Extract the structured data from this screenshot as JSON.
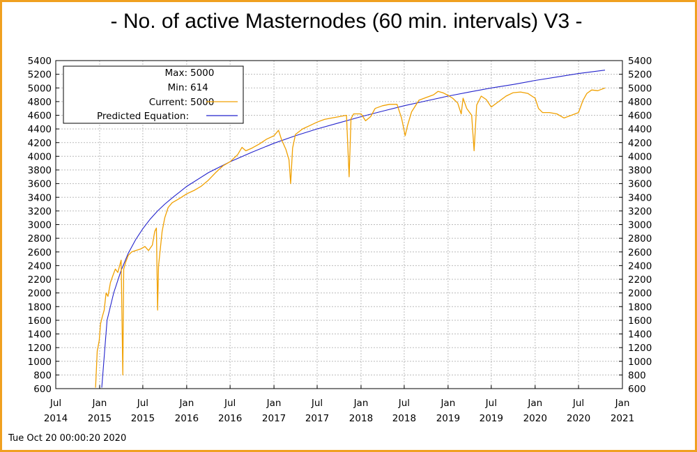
{
  "title": "- No. of active Masternodes (60 min. intervals) V3 -",
  "footer": "Tue Oct 20 00:00:20 2020",
  "colors": {
    "frame": "#f0a020",
    "current": "#f0a000",
    "predicted": "#2222cc",
    "gap": "#000000",
    "grid": "#bbbbbb"
  },
  "chart_data": {
    "type": "line",
    "xlim": [
      "2014-07-01",
      "2021-01-01"
    ],
    "ylim": [
      600,
      5400
    ],
    "yticks": [
      600,
      800,
      1000,
      1200,
      1400,
      1600,
      1800,
      2000,
      2200,
      2400,
      2600,
      2800,
      3000,
      3200,
      3400,
      3600,
      3800,
      4000,
      4200,
      4400,
      4600,
      4800,
      5000,
      5200,
      5400
    ],
    "xticks": [
      {
        "date": "2014-07-01",
        "month": "Jul",
        "year": "2014"
      },
      {
        "date": "2015-01-01",
        "month": "Jan",
        "year": "2015"
      },
      {
        "date": "2015-07-01",
        "month": "Jul",
        "year": "2015"
      },
      {
        "date": "2016-01-01",
        "month": "Jan",
        "year": "2016"
      },
      {
        "date": "2016-07-01",
        "month": "Jul",
        "year": "2016"
      },
      {
        "date": "2017-01-01",
        "month": "Jan",
        "year": "2017"
      },
      {
        "date": "2017-07-01",
        "month": "Jul",
        "year": "2017"
      },
      {
        "date": "2018-01-01",
        "month": "Jan",
        "year": "2018"
      },
      {
        "date": "2018-07-01",
        "month": "Jul",
        "year": "2018"
      },
      {
        "date": "2019-01-01",
        "month": "Jan",
        "year": "2019"
      },
      {
        "date": "2019-07-01",
        "month": "Jul",
        "year": "2019"
      },
      {
        "date": "2020-01-01",
        "month": "Jan",
        "year": "2020"
      },
      {
        "date": "2020-07-01",
        "month": "Jul",
        "year": "2020"
      },
      {
        "date": "2021-01-01",
        "month": "Jan",
        "year": "2021"
      }
    ],
    "grid": true,
    "legend_position": "top-left",
    "legend": {
      "max_label": "Max:",
      "max_value": "5000",
      "min_label": "Min:",
      "min_value": "614",
      "current_label": "Current:",
      "current_value": "5000",
      "predicted_label": "Predicted Equation:"
    },
    "series": [
      {
        "name": "Current",
        "points": [
          [
            "2014-12-15",
            614
          ],
          [
            "2014-12-22",
            1150
          ],
          [
            "2014-12-30",
            1300
          ],
          [
            "2015-01-05",
            1550
          ],
          [
            "2015-01-12",
            1650
          ],
          [
            "2015-01-20",
            1750
          ],
          [
            "2015-01-28",
            2000
          ],
          [
            "2015-02-05",
            1950
          ],
          [
            "2015-02-15",
            2150
          ],
          [
            "2015-02-25",
            2250
          ],
          [
            "2015-03-08",
            2350
          ],
          [
            "2015-03-18",
            2300
          ],
          [
            "2015-04-01",
            2480
          ],
          [
            "2015-04-08",
            800
          ],
          [
            "2015-04-12",
            2350
          ],
          [
            "2015-04-20",
            2450
          ],
          [
            "2015-05-01",
            2550
          ],
          [
            "2015-05-15",
            2600
          ],
          [
            "2015-06-01",
            2620
          ],
          [
            "2015-06-20",
            2640
          ],
          [
            "2015-07-10",
            2680
          ],
          [
            "2015-07-25",
            2620
          ],
          [
            "2015-08-10",
            2700
          ],
          [
            "2015-08-20",
            2900
          ],
          [
            "2015-08-27",
            2950
          ],
          [
            "2015-09-01",
            1750
          ],
          [
            "2015-09-05",
            2400
          ],
          [
            "2015-09-20",
            2900
          ],
          [
            "2015-10-01",
            3100
          ],
          [
            "2015-10-15",
            3250
          ],
          [
            "2015-11-01",
            3320
          ],
          [
            "2015-12-01",
            3380
          ],
          [
            "2016-01-01",
            3450
          ],
          [
            "2016-02-01",
            3500
          ],
          [
            "2016-03-01",
            3560
          ],
          [
            "2016-04-01",
            3650
          ],
          [
            "2016-05-01",
            3760
          ],
          [
            "2016-06-01",
            3860
          ],
          [
            "2016-07-01",
            3920
          ],
          [
            "2016-08-01",
            4020
          ],
          [
            "2016-08-20",
            4130
          ],
          [
            "2016-09-05",
            4080
          ],
          [
            "2016-10-01",
            4120
          ],
          [
            "2016-11-01",
            4180
          ],
          [
            "2016-12-01",
            4250
          ],
          [
            "2017-01-01",
            4300
          ],
          [
            "2017-01-20",
            4380
          ],
          [
            "2017-02-01",
            4250
          ],
          [
            "2017-02-20",
            4100
          ],
          [
            "2017-03-05",
            3950
          ],
          [
            "2017-03-12",
            3600
          ],
          [
            "2017-03-20",
            4120
          ],
          [
            "2017-04-01",
            4320
          ],
          [
            "2017-05-01",
            4400
          ],
          [
            "2017-06-01",
            4450
          ],
          [
            "2017-07-01",
            4500
          ],
          [
            "2017-08-01",
            4540
          ],
          [
            "2017-09-01",
            4560
          ],
          [
            "2017-10-01",
            4580
          ],
          [
            "2017-11-01",
            4600
          ],
          [
            "2017-11-12",
            3700
          ],
          [
            "2017-11-20",
            4550
          ],
          [
            "2017-12-01",
            4620
          ],
          [
            "2018-01-01",
            4620
          ],
          [
            "2018-01-20",
            4520
          ],
          [
            "2018-02-10",
            4580
          ],
          [
            "2018-03-01",
            4700
          ],
          [
            "2018-04-01",
            4740
          ],
          [
            "2018-05-01",
            4760
          ],
          [
            "2018-06-01",
            4760
          ],
          [
            "2018-06-20",
            4560
          ],
          [
            "2018-07-05",
            4300
          ],
          [
            "2018-07-15",
            4450
          ],
          [
            "2018-08-01",
            4650
          ],
          [
            "2018-09-01",
            4820
          ],
          [
            "2018-10-01",
            4860
          ],
          [
            "2018-11-01",
            4900
          ],
          [
            "2018-11-20",
            4950
          ],
          [
            "2018-12-10",
            4930
          ],
          [
            "2019-01-01",
            4890
          ],
          [
            "2019-01-20",
            4850
          ],
          [
            "2019-02-10",
            4780
          ],
          [
            "2019-02-25",
            4620
          ],
          [
            "2019-03-05",
            4850
          ],
          [
            "2019-03-20",
            4700
          ],
          [
            "2019-04-10",
            4600
          ],
          [
            "2019-04-20",
            4080
          ],
          [
            "2019-05-01",
            4750
          ],
          [
            "2019-05-20",
            4880
          ],
          [
            "2019-06-10",
            4830
          ],
          [
            "2019-07-01",
            4720
          ],
          [
            "2019-08-01",
            4800
          ],
          [
            "2019-09-01",
            4880
          ],
          [
            "2019-10-01",
            4930
          ],
          [
            "2019-11-01",
            4940
          ],
          [
            "2019-12-01",
            4920
          ],
          [
            "2020-01-01",
            4850
          ],
          [
            "2020-01-15",
            4700
          ],
          [
            "2020-02-01",
            4640
          ],
          [
            "2020-03-01",
            4640
          ],
          [
            "2020-04-01",
            4620
          ],
          [
            "2020-05-01",
            4560
          ],
          [
            "2020-06-01",
            4600
          ],
          [
            "2020-07-01",
            4640
          ],
          [
            "2020-07-20",
            4820
          ],
          [
            "2020-08-05",
            4920
          ],
          [
            "2020-08-25",
            4970
          ],
          [
            "2020-09-20",
            4960
          ],
          [
            "2020-10-20",
            5000
          ]
        ]
      },
      {
        "name": "Predicted Equation",
        "points": [
          [
            "2015-01-10",
            614
          ],
          [
            "2015-02-01",
            1600
          ],
          [
            "2015-03-01",
            2000
          ],
          [
            "2015-04-01",
            2330
          ],
          [
            "2015-05-01",
            2580
          ],
          [
            "2015-06-01",
            2780
          ],
          [
            "2015-07-01",
            2940
          ],
          [
            "2015-08-01",
            3080
          ],
          [
            "2015-09-01",
            3200
          ],
          [
            "2015-10-01",
            3300
          ],
          [
            "2015-11-01",
            3390
          ],
          [
            "2016-01-01",
            3560
          ],
          [
            "2016-04-01",
            3760
          ],
          [
            "2016-07-01",
            3920
          ],
          [
            "2016-10-01",
            4060
          ],
          [
            "2017-01-01",
            4190
          ],
          [
            "2017-04-01",
            4300
          ],
          [
            "2017-07-01",
            4400
          ],
          [
            "2017-10-01",
            4490
          ],
          [
            "2018-01-01",
            4580
          ],
          [
            "2018-04-01",
            4660
          ],
          [
            "2018-07-01",
            4740
          ],
          [
            "2018-10-01",
            4810
          ],
          [
            "2019-01-01",
            4880
          ],
          [
            "2019-04-01",
            4940
          ],
          [
            "2019-07-01",
            5000
          ],
          [
            "2019-10-01",
            5050
          ],
          [
            "2020-01-01",
            5110
          ],
          [
            "2020-04-01",
            5160
          ],
          [
            "2020-07-01",
            5210
          ],
          [
            "2020-10-20",
            5260
          ]
        ]
      }
    ]
  }
}
